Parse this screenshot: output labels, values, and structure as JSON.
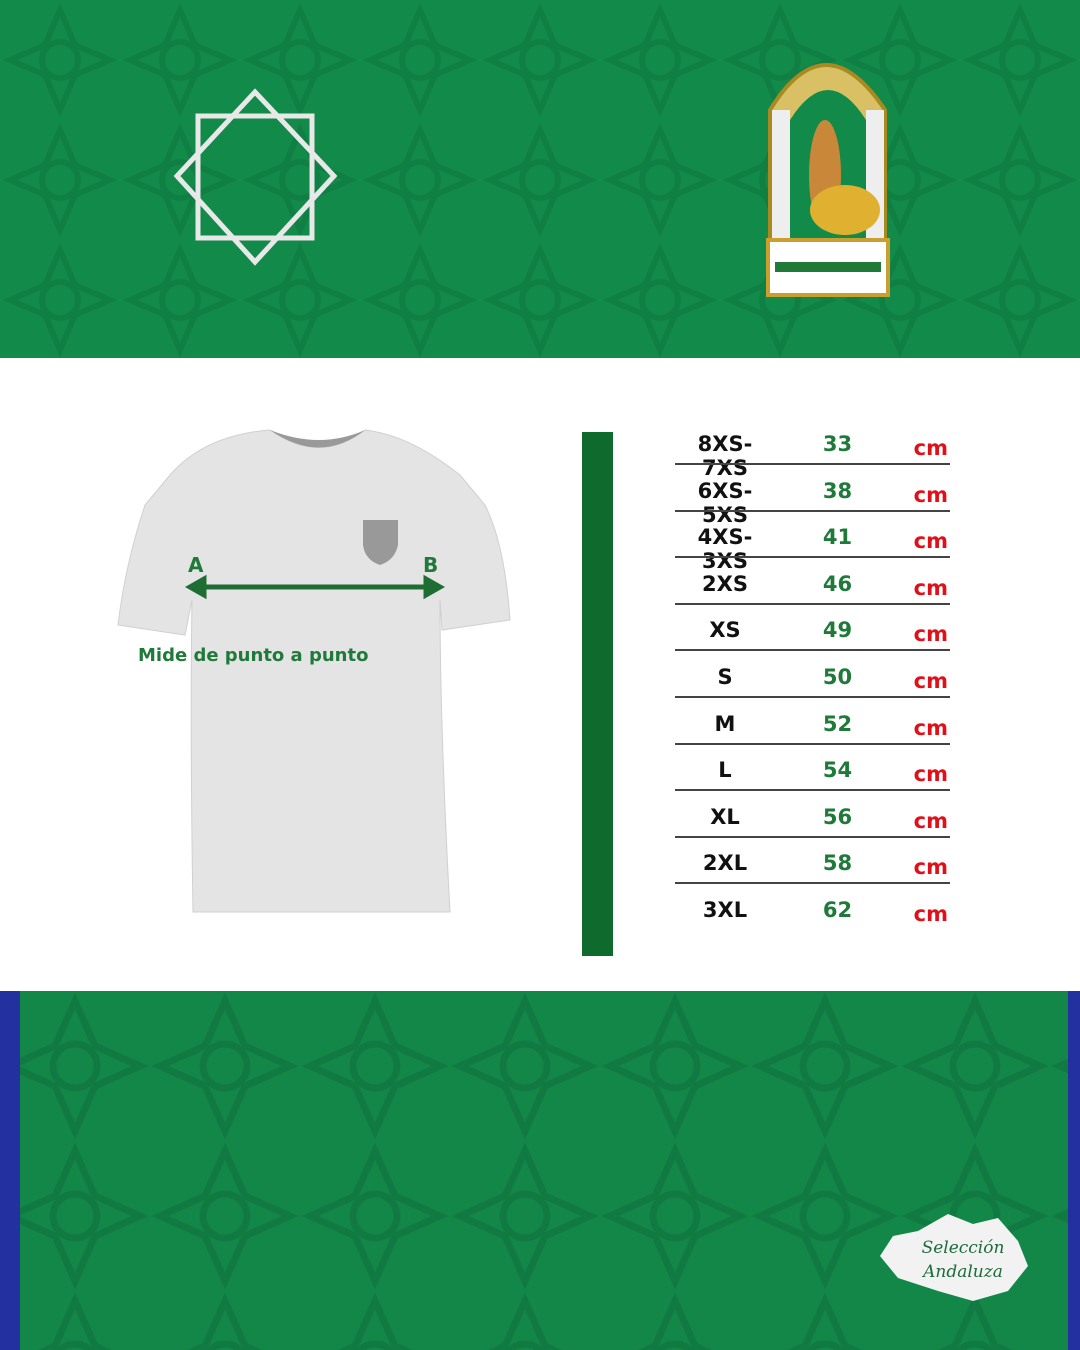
{
  "header": {
    "star_icon": "eight-point-star-icon",
    "emblem": "andalusia-coat-of-arms"
  },
  "diagram": {
    "point_a": "A",
    "point_b": "B",
    "caption": "Mide de punto a punto"
  },
  "colors": {
    "green": "#128a4a",
    "bar": "#0e6b2d",
    "value": "#1f7a3a",
    "unit": "#e0101a"
  },
  "size_table": {
    "columns": [
      "size",
      "measure",
      "unit"
    ],
    "rows": [
      {
        "size": "8XS-7XS",
        "value": "33",
        "unit": "cm"
      },
      {
        "size": "6XS-5XS",
        "value": "38",
        "unit": "cm"
      },
      {
        "size": "4XS-3XS",
        "value": "41",
        "unit": "cm"
      },
      {
        "size": "2XS",
        "value": "46",
        "unit": "cm"
      },
      {
        "size": "XS",
        "value": "49",
        "unit": "cm"
      },
      {
        "size": "S",
        "value": "50",
        "unit": "cm"
      },
      {
        "size": "M",
        "value": "52",
        "unit": "cm"
      },
      {
        "size": "L",
        "value": "54",
        "unit": "cm"
      },
      {
        "size": "XL",
        "value": "56",
        "unit": "cm"
      },
      {
        "size": "2XL",
        "value": "58",
        "unit": "cm"
      },
      {
        "size": "3XL",
        "value": "62",
        "unit": "cm"
      }
    ]
  },
  "footer": {
    "logo_text": "Selección Andaluza"
  }
}
